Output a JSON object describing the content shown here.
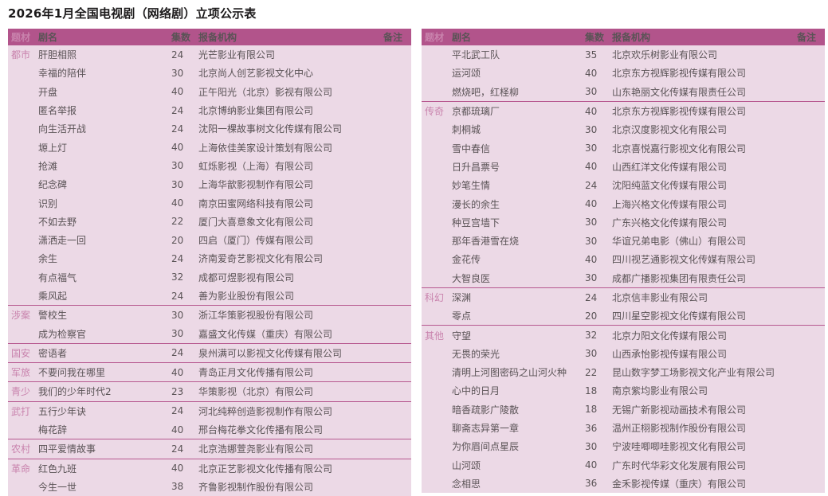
{
  "page_title": "2026年1月全国电视剧（网络剧）立项公示表",
  "colors": {
    "header_bg": "#b2548b",
    "header_text": "#ffffff",
    "row_bg": "#ecd9e6",
    "genre_text": "#c983ad",
    "body_text": "#5a5356",
    "divider": "#b75990",
    "title_text": "#1c1a1b",
    "page_bg": "#ffffff"
  },
  "columns": [
    "题材",
    "剧名",
    "集数",
    "报备机构",
    "备注"
  ],
  "tables": [
    {
      "name": "left",
      "groups": [
        {
          "genre": "都市",
          "rows": [
            {
              "title": "肝胆相照",
              "episodes": "24",
              "company": "光芒影业有限公司",
              "note": ""
            },
            {
              "title": "幸福的陪伴",
              "episodes": "30",
              "company": "北京尚人创艺影视文化中心",
              "note": ""
            },
            {
              "title": "开盘",
              "episodes": "40",
              "company": "正午阳光（北京）影视有限公司",
              "note": ""
            },
            {
              "title": "匿名举报",
              "episodes": "24",
              "company": "北京博纳影业集团有限公司",
              "note": ""
            },
            {
              "title": "向生活开战",
              "episodes": "24",
              "company": "沈阳一棵故事树文化传媒有限公司",
              "note": ""
            },
            {
              "title": "塬上灯",
              "episodes": "40",
              "company": "上海依佳美家设计策划有限公司",
              "note": ""
            },
            {
              "title": "抢滩",
              "episodes": "30",
              "company": "虹烁影视（上海）有限公司",
              "note": ""
            },
            {
              "title": "纪念碑",
              "episodes": "30",
              "company": "上海华歆影视制作有限公司",
              "note": ""
            },
            {
              "title": "识别",
              "episodes": "40",
              "company": "南京田蜜网络科技有限公司",
              "note": ""
            },
            {
              "title": "不如去野",
              "episodes": "22",
              "company": "厦门大喜意象文化有限公司",
              "note": ""
            },
            {
              "title": "潇洒走一回",
              "episodes": "20",
              "company": "四启（厦门）传媒有限公司",
              "note": ""
            },
            {
              "title": "余生",
              "episodes": "24",
              "company": "济南爱奇艺影视文化有限公司",
              "note": ""
            },
            {
              "title": "有点福气",
              "episodes": "32",
              "company": "成都可煜影视有限公司",
              "note": ""
            },
            {
              "title": "乘风起",
              "episodes": "24",
              "company": "善为影业股份有限公司",
              "note": ""
            }
          ]
        },
        {
          "genre": "涉案",
          "rows": [
            {
              "title": "警校生",
              "episodes": "30",
              "company": "浙江华策影视股份有限公司",
              "note": ""
            },
            {
              "title": "成为检察官",
              "episodes": "30",
              "company": "嘉盛文化传媒（重庆）有限公司",
              "note": ""
            }
          ]
        },
        {
          "genre": "国安",
          "rows": [
            {
              "title": "密语者",
              "episodes": "24",
              "company": "泉州满可以影视文化传媒有限公司",
              "note": ""
            }
          ]
        },
        {
          "genre": "军旅",
          "rows": [
            {
              "title": "不要问我在哪里",
              "episodes": "40",
              "company": "青岛正月文化传播有限公司",
              "note": ""
            }
          ]
        },
        {
          "genre": "青少",
          "rows": [
            {
              "title": "我们的少年时代2",
              "episodes": "23",
              "company": "华策影视（北京）有限公司",
              "note": ""
            }
          ]
        },
        {
          "genre": "武打",
          "rows": [
            {
              "title": "五行少年诀",
              "episodes": "24",
              "company": "河北纯粹创造影视制作有限公司",
              "note": ""
            },
            {
              "title": "梅花辞",
              "episodes": "40",
              "company": "邢台梅花拳文化传播有限公司",
              "note": ""
            }
          ]
        },
        {
          "genre": "农村",
          "rows": [
            {
              "title": "四平爱情故事",
              "episodes": "24",
              "company": "北京浩娜萱尧影业有限公司",
              "note": ""
            }
          ]
        },
        {
          "genre": "革命",
          "rows": [
            {
              "title": "红色九班",
              "episodes": "40",
              "company": "北京正艺影视文化传播有限公司",
              "note": ""
            },
            {
              "title": "今生一世",
              "episodes": "38",
              "company": "齐鲁影视制作股份有限公司",
              "note": ""
            }
          ]
        }
      ]
    },
    {
      "name": "right",
      "groups": [
        {
          "genre": "",
          "rows": [
            {
              "title": "平北武工队",
              "episodes": "35",
              "company": "北京欢乐树影业有限公司",
              "note": ""
            },
            {
              "title": "运河颂",
              "episodes": "40",
              "company": "北京东方视辉影视传媒有限公司",
              "note": ""
            },
            {
              "title": "燃烧吧，红柽柳",
              "episodes": "30",
              "company": "山东艳丽文化传媒有限责任公司",
              "note": ""
            }
          ]
        },
        {
          "genre": "传奇",
          "rows": [
            {
              "title": "京都琉璃厂",
              "episodes": "40",
              "company": "北京东方视辉影视传媒有限公司",
              "note": ""
            },
            {
              "title": "刺桐城",
              "episodes": "30",
              "company": "北京汉度影视文化有限公司",
              "note": ""
            },
            {
              "title": "雪中春信",
              "episodes": "30",
              "company": "北京喜悦嘉行影视文化有限公司",
              "note": ""
            },
            {
              "title": "日升昌票号",
              "episodes": "40",
              "company": "山西红洋文化传媒有限公司",
              "note": ""
            },
            {
              "title": "妙笔生情",
              "episodes": "24",
              "company": "沈阳纯蓝文化传媒有限公司",
              "note": ""
            },
            {
              "title": "漫长的余生",
              "episodes": "40",
              "company": "上海兴格文化传媒有限公司",
              "note": ""
            },
            {
              "title": "种豆宫墙下",
              "episodes": "30",
              "company": "广东兴格文化传媒有限公司",
              "note": ""
            },
            {
              "title": "那年香港雪在烧",
              "episodes": "30",
              "company": "华谊兄弟电影（佛山）有限公司",
              "note": ""
            },
            {
              "title": "金花传",
              "episodes": "40",
              "company": "四川视艺通影视文化传媒有限公司",
              "note": ""
            },
            {
              "title": "大智良医",
              "episodes": "30",
              "company": "成都广播影视集团有限责任公司",
              "note": ""
            }
          ]
        },
        {
          "genre": "科幻",
          "rows": [
            {
              "title": "深渊",
              "episodes": "24",
              "company": "北京信丰影业有限公司",
              "note": ""
            },
            {
              "title": "零点",
              "episodes": "20",
              "company": "四川星空影视文化传媒有限公司",
              "note": ""
            }
          ]
        },
        {
          "genre": "其他",
          "rows": [
            {
              "title": "守望",
              "episodes": "32",
              "company": "北京力阳文化传媒有限公司",
              "note": ""
            },
            {
              "title": "无畏的荣光",
              "episodes": "30",
              "company": "山西承怡影视传媒有限公司",
              "note": ""
            },
            {
              "title": "清明上河图密码之山河火种",
              "episodes": "22",
              "company": "昆山数字梦工场影视文化产业有限公司",
              "note": ""
            },
            {
              "title": "心中的日月",
              "episodes": "18",
              "company": "南京紫均影业有限公司",
              "note": ""
            },
            {
              "title": "暗香疏影广陵散",
              "episodes": "18",
              "company": "无锡广新影视动画技术有限公司",
              "note": ""
            },
            {
              "title": "聊斋志异第一章",
              "episodes": "36",
              "company": "温州正栩影视制作股份有限公司",
              "note": ""
            },
            {
              "title": "为你眉间点星辰",
              "episodes": "30",
              "company": "宁波哇唧唧哇影视文化有限公司",
              "note": ""
            },
            {
              "title": "山河颂",
              "episodes": "40",
              "company": "广东时代华彩文化发展有限公司",
              "note": ""
            },
            {
              "title": "念相思",
              "episodes": "36",
              "company": "金禾影视传媒（重庆）有限公司",
              "note": ""
            }
          ]
        }
      ]
    }
  ]
}
